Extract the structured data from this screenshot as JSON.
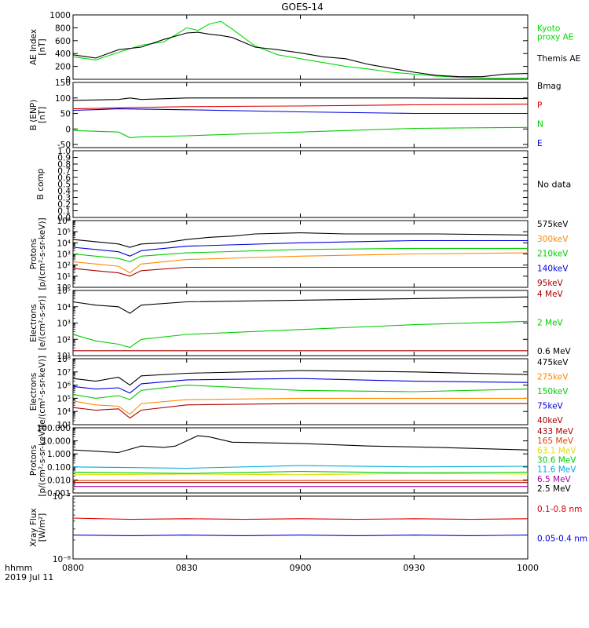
{
  "title": "GOES-14",
  "time_axis": {
    "tick_labels": [
      "0800",
      "0830",
      "0900",
      "0930",
      "1000"
    ],
    "tick_hours": [
      8.0,
      8.5,
      9.0,
      9.5,
      10.0
    ],
    "range_hours": [
      8.0,
      10.0
    ],
    "label_fmt": "hhmm",
    "date": "2019 Jul 11"
  },
  "chart_data": [
    {
      "type": "line",
      "panel": "ae",
      "ylabel": [
        "AE Index",
        "[nT]"
      ],
      "ylim": [
        0,
        1000
      ],
      "scale": "linear",
      "y_ticks": [
        0,
        200,
        400,
        600,
        800,
        1000
      ],
      "y_tick_labels": [
        "0",
        "200",
        "400",
        "600",
        "800",
        "1000"
      ],
      "series": [
        {
          "name": "Kyoto proxy AE",
          "label_lines": [
            "Kyoto",
            "proxy AE"
          ],
          "color": "#00dd00",
          "x": [
            8.0,
            8.1,
            8.2,
            8.3,
            8.4,
            8.5,
            8.55,
            8.6,
            8.65,
            8.7,
            8.8,
            8.9,
            9.0,
            9.1,
            9.2,
            9.3,
            9.4,
            9.5,
            9.6,
            9.7,
            9.8,
            9.9,
            10.0
          ],
          "y": [
            350,
            300,
            420,
            530,
            580,
            800,
            760,
            860,
            900,
            780,
            520,
            380,
            320,
            260,
            200,
            160,
            110,
            80,
            50,
            30,
            20,
            15,
            20
          ]
        },
        {
          "name": "Themis AE",
          "label_lines": [
            "Themis AE"
          ],
          "color": "#000000",
          "x": [
            8.0,
            8.1,
            8.2,
            8.3,
            8.4,
            8.5,
            8.55,
            8.6,
            8.65,
            8.7,
            8.8,
            8.9,
            9.0,
            9.1,
            9.2,
            9.3,
            9.4,
            9.5,
            9.6,
            9.7,
            9.8,
            9.9,
            10.0
          ],
          "y": [
            380,
            330,
            460,
            500,
            620,
            720,
            730,
            700,
            680,
            650,
            500,
            460,
            410,
            350,
            320,
            230,
            170,
            110,
            60,
            40,
            40,
            80,
            90
          ]
        }
      ]
    },
    {
      "type": "line",
      "panel": "b-enp",
      "ylabel": [
        "B (ENP)",
        "[nT]"
      ],
      "ylim": [
        -60,
        150
      ],
      "scale": "linear",
      "y_ticks": [
        -50,
        0,
        50,
        100,
        150
      ],
      "y_tick_labels": [
        "-50",
        "0",
        "50",
        "100",
        "150"
      ],
      "series": [
        {
          "name": "Bmag",
          "color": "#000000",
          "x": [
            8.0,
            8.2,
            8.25,
            8.3,
            8.5,
            9.0,
            9.5,
            10.0
          ],
          "y": [
            92,
            95,
            100,
            95,
            100,
            100,
            100,
            98
          ]
        },
        {
          "name": "P",
          "color": "#dd0000",
          "x": [
            8.0,
            8.2,
            8.5,
            9.0,
            9.5,
            10.0
          ],
          "y": [
            65,
            68,
            72,
            74,
            78,
            80
          ]
        },
        {
          "name": "N",
          "color": "#00cc00",
          "x": [
            8.0,
            8.2,
            8.25,
            8.3,
            8.5,
            9.0,
            9.5,
            10.0
          ],
          "y": [
            -5,
            -10,
            -28,
            -25,
            -22,
            -10,
            2,
            5
          ]
        },
        {
          "name": "E",
          "color": "#0000dd",
          "x": [
            8.0,
            8.2,
            8.5,
            9.0,
            9.5,
            10.0
          ],
          "y": [
            60,
            65,
            62,
            55,
            50,
            50
          ]
        }
      ]
    },
    {
      "type": "line",
      "panel": "b-comp",
      "ylabel": [
        "B comp"
      ],
      "ylim": [
        0,
        1
      ],
      "scale": "linear",
      "y_ticks": [
        0,
        0.1,
        0.2,
        0.3,
        0.4,
        0.5,
        0.6,
        0.7,
        0.8,
        0.9,
        1.0
      ],
      "y_tick_labels": [
        "0.0",
        "0.1",
        "0.2",
        "0.3",
        "0.4",
        "0.5",
        "0.6",
        "0.7",
        "0.8",
        "0.9",
        "1.0"
      ],
      "note": "No data",
      "series": []
    },
    {
      "type": "line",
      "panel": "protons-low",
      "ylabel": [
        "Protons",
        "[p/(cm²-s-sr-keV)]"
      ],
      "ylim_log10": [
        0,
        6
      ],
      "scale": "log",
      "y_ticks_log10": [
        0,
        1,
        2,
        3,
        4,
        5,
        6
      ],
      "series": [
        {
          "name": "575keV",
          "color": "#000000",
          "x": [
            8.0,
            8.1,
            8.2,
            8.25,
            8.3,
            8.4,
            8.5,
            8.6,
            8.7,
            8.8,
            9.0,
            9.2,
            9.4,
            9.6,
            10.0
          ],
          "y_log10": [
            4.3,
            4.1,
            3.9,
            3.6,
            3.9,
            4.0,
            4.3,
            4.5,
            4.6,
            4.8,
            4.9,
            4.8,
            4.8,
            4.8,
            4.7
          ]
        },
        {
          "name": "300keV",
          "color": "#ff8800",
          "x": [
            8.0,
            8.1,
            8.2,
            8.25,
            8.3,
            8.5,
            9.0,
            9.5,
            10.0
          ],
          "y_log10": [
            2.3,
            2.1,
            1.9,
            1.3,
            2.1,
            2.5,
            2.8,
            3.0,
            3.1
          ]
        },
        {
          "name": "210keV",
          "color": "#00cc00",
          "x": [
            8.0,
            8.1,
            8.2,
            8.25,
            8.3,
            8.5,
            9.0,
            9.5,
            10.0
          ],
          "y_log10": [
            3.0,
            2.8,
            2.6,
            2.3,
            2.8,
            3.1,
            3.4,
            3.5,
            3.5
          ]
        },
        {
          "name": "140keV",
          "color": "#0000dd",
          "x": [
            8.0,
            8.1,
            8.2,
            8.25,
            8.3,
            8.5,
            9.0,
            9.5,
            10.0
          ],
          "y_log10": [
            3.6,
            3.4,
            3.2,
            2.8,
            3.3,
            3.7,
            4.0,
            4.2,
            4.2
          ]
        },
        {
          "name": "95keV",
          "color": "#aa0000",
          "x": [
            8.0,
            8.1,
            8.2,
            8.25,
            8.3,
            8.5,
            9.0,
            9.5,
            10.0
          ],
          "y_log10": [
            1.7,
            1.5,
            1.3,
            1.0,
            1.5,
            1.8,
            1.8,
            1.8,
            1.8
          ]
        }
      ]
    },
    {
      "type": "line",
      "panel": "electrons-mev",
      "ylabel": [
        "Electrons",
        "[e/(cm²-s-sr)]"
      ],
      "ylim_log10": [
        1,
        5
      ],
      "scale": "log",
      "y_ticks_log10": [
        1,
        2,
        3,
        4,
        5
      ],
      "series": [
        {
          "name": "4 MeV",
          "color": "#aa0000",
          "x": [
            8.0,
            8.5,
            9.0,
            9.5,
            10.0
          ],
          "y_log10": [
            1.3,
            1.3,
            1.3,
            1.3,
            1.3
          ]
        },
        {
          "name": "2 MeV",
          "color": "#00cc00",
          "x": [
            8.0,
            8.1,
            8.2,
            8.25,
            8.3,
            8.5,
            9.0,
            9.5,
            10.0
          ],
          "y_log10": [
            2.3,
            1.9,
            1.7,
            1.5,
            2.0,
            2.3,
            2.6,
            2.9,
            3.1
          ]
        },
        {
          "name": "0.6 MeV",
          "color": "#000000",
          "x": [
            8.0,
            8.1,
            8.2,
            8.25,
            8.3,
            8.5,
            9.0,
            9.5,
            10.0
          ],
          "y_log10": [
            4.3,
            4.1,
            4.0,
            3.6,
            4.1,
            4.3,
            4.4,
            4.5,
            4.6
          ]
        }
      ]
    },
    {
      "type": "line",
      "panel": "electrons-kev",
      "ylabel": [
        "Electrons",
        "[e/(cm²-s-sr-keV)]"
      ],
      "ylim_log10": [
        3,
        8
      ],
      "scale": "log",
      "y_ticks_log10": [
        3,
        4,
        5,
        6,
        7,
        8
      ],
      "series": [
        {
          "name": "475keV",
          "color": "#000000",
          "x": [
            8.0,
            8.1,
            8.2,
            8.25,
            8.3,
            8.5,
            9.0,
            9.5,
            10.0
          ],
          "y_log10": [
            6.5,
            6.3,
            6.6,
            6.0,
            6.7,
            6.9,
            7.1,
            7.0,
            6.8
          ]
        },
        {
          "name": "275keV",
          "color": "#ff8800",
          "x": [
            8.0,
            8.1,
            8.2,
            8.25,
            8.3,
            8.5,
            9.0,
            9.5,
            10.0
          ],
          "y_log10": [
            4.8,
            4.5,
            4.4,
            3.8,
            4.6,
            4.9,
            5.0,
            5.0,
            5.0
          ]
        },
        {
          "name": "150keV",
          "color": "#00cc00",
          "x": [
            8.0,
            8.1,
            8.2,
            8.25,
            8.3,
            8.5,
            9.0,
            9.5,
            10.0
          ],
          "y_log10": [
            5.3,
            5.0,
            5.2,
            4.9,
            5.6,
            6.0,
            5.6,
            5.5,
            5.7
          ]
        },
        {
          "name": "75keV",
          "color": "#0000dd",
          "x": [
            8.0,
            8.1,
            8.2,
            8.25,
            8.3,
            8.5,
            9.0,
            9.5,
            10.0
          ],
          "y_log10": [
            5.9,
            5.7,
            5.8,
            5.4,
            6.1,
            6.4,
            6.5,
            6.3,
            6.2
          ]
        },
        {
          "name": "40keV",
          "color": "#aa0000",
          "x": [
            8.0,
            8.1,
            8.2,
            8.25,
            8.3,
            8.5,
            9.0,
            9.5,
            10.0
          ],
          "y_log10": [
            4.3,
            4.1,
            4.2,
            3.5,
            4.1,
            4.5,
            4.6,
            4.6,
            4.6
          ]
        }
      ]
    },
    {
      "type": "line",
      "panel": "protons-high",
      "ylabel": [
        "Protons",
        "[p/(cm²-s-sr-keV)]"
      ],
      "ylim_log10": [
        -3,
        2
      ],
      "scale": "log",
      "y_ticks_log10": [
        -3,
        -2,
        -1,
        0,
        1,
        2
      ],
      "y_tick_labels": [
        "0.001",
        "0.010",
        "0.100",
        "1.000",
        "10.000",
        "100.000"
      ],
      "series": [
        {
          "name": "433 MeV",
          "color": "#aa0000",
          "x": [
            8.0,
            10.0
          ],
          "y_log10": [
            -2.2,
            -2.2
          ]
        },
        {
          "name": "165 MeV",
          "color": "#dd4400",
          "x": [
            8.0,
            10.0
          ],
          "y_log10": [
            -2.05,
            -2.05
          ]
        },
        {
          "name": "63.1 MeV",
          "color": "#dddd00",
          "x": [
            8.0,
            8.5,
            9.0,
            9.5,
            10.0
          ],
          "y_log10": [
            -1.6,
            -1.55,
            -1.6,
            -1.5,
            -1.55
          ]
        },
        {
          "name": "30.6 MeV",
          "color": "#00cc00",
          "x": [
            8.0,
            8.5,
            9.0,
            9.5,
            10.0
          ],
          "y_log10": [
            -1.4,
            -1.5,
            -1.35,
            -1.45,
            -1.4
          ]
        },
        {
          "name": "11.6 MeV",
          "color": "#00aadd",
          "x": [
            8.0,
            8.5,
            9.0,
            9.5,
            10.0
          ],
          "y_log10": [
            -1.0,
            -1.1,
            -0.9,
            -1.0,
            -0.95
          ]
        },
        {
          "name": "6.5 MeV",
          "color": "#aa00aa",
          "x": [
            8.0,
            10.0
          ],
          "y_log10": [
            -2.5,
            -2.5
          ]
        },
        {
          "name": "2.5 MeV",
          "color": "#000000",
          "x": [
            8.0,
            8.2,
            8.3,
            8.4,
            8.45,
            8.55,
            8.6,
            8.7,
            9.0,
            9.3,
            9.6,
            10.0
          ],
          "y_log10": [
            0.3,
            0.1,
            0.6,
            0.5,
            0.6,
            1.4,
            1.3,
            0.9,
            0.8,
            0.6,
            0.5,
            0.3
          ]
        }
      ]
    },
    {
      "type": "line",
      "panel": "xray",
      "ylabel": [
        "Xray Flux",
        "[W/m²]"
      ],
      "ylim_log10": [
        -8,
        -7
      ],
      "scale": "log",
      "y_ticks_log10": [
        -8,
        -7
      ],
      "y_tick_labels": [
        "10⁻⁸",
        "10⁻⁷"
      ],
      "series": [
        {
          "name": "0.1-0.8 nm",
          "color": "#dd0000",
          "x": [
            8.0,
            8.25,
            8.5,
            8.75,
            9.0,
            9.25,
            9.5,
            9.75,
            10.0
          ],
          "y_log10": [
            -7.35,
            -7.37,
            -7.36,
            -7.37,
            -7.36,
            -7.37,
            -7.36,
            -7.37,
            -7.36
          ]
        },
        {
          "name": "0.05-0.4 nm",
          "color": "#0000dd",
          "x": [
            8.0,
            8.25,
            8.5,
            8.75,
            9.0,
            9.25,
            9.5,
            9.75,
            10.0
          ],
          "y_log10": [
            -7.62,
            -7.63,
            -7.62,
            -7.63,
            -7.62,
            -7.63,
            -7.62,
            -7.63,
            -7.62
          ]
        }
      ]
    }
  ]
}
